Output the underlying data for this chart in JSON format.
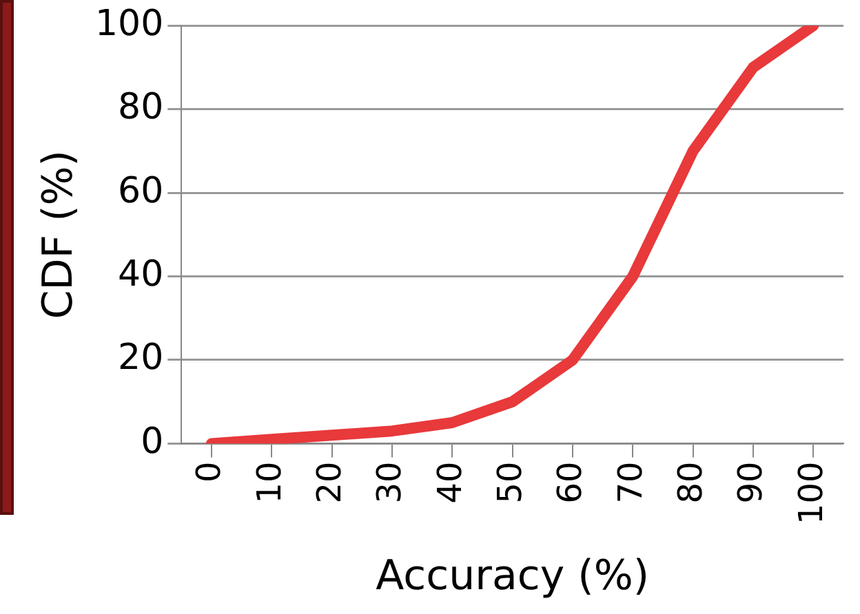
{
  "chart_data": {
    "type": "line",
    "xlabel": "Accuracy (%)",
    "ylabel": "CDF (%)",
    "categories": [
      "0",
      "10",
      "20",
      "30",
      "40",
      "50",
      "60",
      "70",
      "80",
      "90",
      "100"
    ],
    "series": [
      {
        "color": "#e8393b",
        "values": [
          0,
          1,
          2,
          3,
          5,
          10,
          20,
          40,
          70,
          90,
          100
        ]
      }
    ],
    "ylim": [
      0,
      100
    ],
    "yticks": [
      0,
      20,
      40,
      60,
      80,
      100
    ],
    "grid": "y",
    "legend": false,
    "marker": "none",
    "line_style": "solid"
  }
}
